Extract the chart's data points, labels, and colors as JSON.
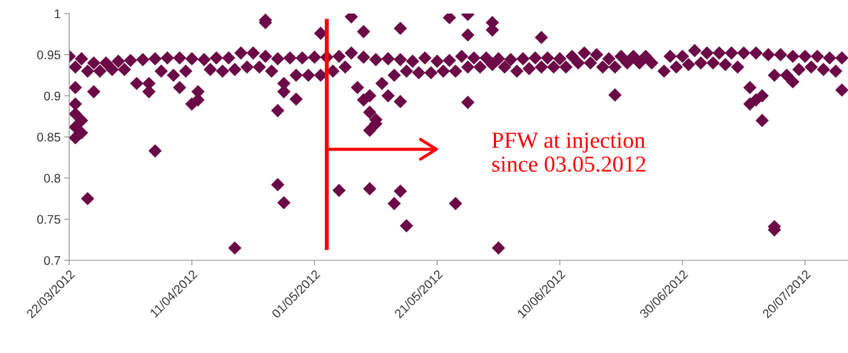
{
  "chart_data": {
    "type": "scatter",
    "color": "#6b0a47",
    "marker": "diamond",
    "grid": false,
    "legend": false,
    "x": [
      "2012-03-22",
      "2012-03-23",
      "2012-03-24",
      "2012-03-25",
      "2012-03-26",
      "2012-03-27",
      "2012-03-28",
      "2012-03-29",
      "2012-03-30",
      "2012-03-31",
      "2012-04-01",
      "2012-04-02",
      "2012-04-03",
      "2012-04-04",
      "2012-04-05",
      "2012-04-06",
      "2012-04-07",
      "2012-04-08",
      "2012-04-09",
      "2012-04-10",
      "2012-04-11",
      "2012-04-12",
      "2012-04-13",
      "2012-04-14",
      "2012-04-15",
      "2012-04-16",
      "2012-04-17",
      "2012-04-18",
      "2012-04-19",
      "2012-04-20",
      "2012-04-21",
      "2012-04-22",
      "2012-04-23",
      "2012-04-24",
      "2012-04-25",
      "2012-04-26",
      "2012-04-27",
      "2012-04-28",
      "2012-04-29",
      "2012-04-30",
      "2012-05-01",
      "2012-05-02",
      "2012-05-03",
      "2012-05-04",
      "2012-05-05",
      "2012-05-06",
      "2012-05-07",
      "2012-05-08",
      "2012-05-09",
      "2012-05-10",
      "2012-05-11",
      "2012-05-12",
      "2012-05-13",
      "2012-05-14",
      "2012-05-15",
      "2012-05-16",
      "2012-05-17",
      "2012-05-18",
      "2012-05-19",
      "2012-05-20",
      "2012-05-21",
      "2012-05-22",
      "2012-05-23",
      "2012-05-24",
      "2012-05-25",
      "2012-05-26",
      "2012-05-27",
      "2012-05-28",
      "2012-05-29",
      "2012-05-30",
      "2012-05-31",
      "2012-06-01",
      "2012-06-02",
      "2012-06-03",
      "2012-06-04",
      "2012-06-05",
      "2012-06-06",
      "2012-06-07",
      "2012-06-08",
      "2012-06-09",
      "2012-06-10",
      "2012-06-11",
      "2012-06-12",
      "2012-06-13",
      "2012-06-14",
      "2012-06-15",
      "2012-06-16",
      "2012-06-17",
      "2012-06-18",
      "2012-06-19",
      "2012-06-20",
      "2012-06-21",
      "2012-06-22",
      "2012-06-23",
      "2012-06-24",
      "2012-06-25",
      "2012-06-27",
      "2012-06-28",
      "2012-06-29",
      "2012-06-30",
      "2012-07-01",
      "2012-07-02",
      "2012-07-03",
      "2012-07-04",
      "2012-07-05",
      "2012-07-06",
      "2012-07-07",
      "2012-07-08",
      "2012-07-09",
      "2012-07-10",
      "2012-07-11",
      "2012-07-12",
      "2012-07-13",
      "2012-07-14",
      "2012-07-15",
      "2012-07-16",
      "2012-07-17",
      "2012-07-18",
      "2012-07-19",
      "2012-07-20",
      "2012-07-21",
      "2012-07-22",
      "2012-07-23",
      "2012-07-24",
      "2012-07-25",
      "2012-07-26",
      "2012-03-23",
      "2012-03-23",
      "2012-03-23",
      "2012-03-24",
      "2012-03-23",
      "2012-03-24",
      "2012-03-23",
      "2012-03-26",
      "2012-04-04",
      "2012-04-11",
      "2012-04-12",
      "2012-05-09",
      "2012-05-13",
      "2012-07-12",
      "2012-07-11",
      "2012-04-26",
      "2012-04-09",
      "2012-04-23",
      "2012-04-23",
      "2012-05-02",
      "2012-04-25",
      "2012-04-28",
      "2012-04-05",
      "2012-03-25",
      "2012-04-25",
      "2012-04-26",
      "2012-04-18",
      "2012-05-07",
      "2012-05-09",
      "2012-05-15",
      "2012-05-23",
      "2012-05-26",
      "2012-05-30",
      "2012-05-30",
      "2012-05-26",
      "2012-06-07",
      "2012-05-15",
      "2012-05-26",
      "2012-05-10",
      "2012-05-11",
      "2012-05-10",
      "2012-05-11",
      "2012-05-05",
      "2012-05-10",
      "2012-05-15",
      "2012-05-14",
      "2012-05-16",
      "2012-05-24",
      "2012-05-31",
      "2012-06-19",
      "2012-07-13",
      "2012-07-15",
      "2012-07-15",
      "2012-07-18",
      "2012-07-26"
    ],
    "values": [
      0.948,
      0.935,
      0.945,
      0.93,
      0.94,
      0.93,
      0.94,
      0.932,
      0.942,
      0.932,
      0.943,
      0.915,
      0.944,
      0.915,
      0.945,
      0.93,
      0.946,
      0.925,
      0.946,
      0.93,
      0.945,
      0.905,
      0.944,
      0.932,
      0.946,
      0.93,
      0.946,
      0.932,
      0.952,
      0.935,
      0.952,
      0.935,
      0.948,
      0.93,
      0.945,
      0.915,
      0.946,
      0.925,
      0.946,
      0.925,
      0.947,
      0.925,
      0.947,
      0.93,
      0.948,
      0.935,
      0.952,
      0.91,
      0.947,
      0.9,
      0.944,
      0.915,
      0.945,
      0.925,
      0.944,
      0.93,
      0.942,
      0.928,
      0.946,
      0.928,
      0.942,
      0.93,
      0.943,
      0.93,
      0.948,
      0.935,
      0.946,
      0.935,
      0.946,
      0.938,
      0.945,
      0.935,
      0.944,
      0.93,
      0.945,
      0.933,
      0.946,
      0.935,
      0.946,
      0.935,
      0.945,
      0.935,
      0.948,
      0.94,
      0.952,
      0.94,
      0.95,
      0.935,
      0.945,
      0.935,
      0.948,
      0.94,
      0.948,
      0.94,
      0.948,
      0.94,
      0.93,
      0.948,
      0.935,
      0.948,
      0.938,
      0.955,
      0.94,
      0.952,
      0.94,
      0.952,
      0.938,
      0.952,
      0.935,
      0.952,
      0.91,
      0.952,
      0.9,
      0.95,
      0.925,
      0.95,
      0.925,
      0.948,
      0.932,
      0.948,
      0.935,
      0.948,
      0.932,
      0.946,
      0.93,
      0.946,
      0.91,
      0.89,
      0.878,
      0.87,
      0.862,
      0.855,
      0.849,
      0.905,
      0.905,
      0.89,
      0.895,
      0.895,
      0.9,
      0.895,
      0.89,
      0.905,
      0.91,
      0.992,
      0.989,
      0.976,
      0.882,
      0.896,
      0.833,
      0.775,
      0.792,
      0.77,
      0.715,
      0.996,
      0.978,
      0.982,
      0.995,
      0.999,
      0.989,
      0.98,
      0.974,
      0.971,
      0.893,
      0.892,
      0.88,
      0.871,
      0.858,
      0.866,
      0.785,
      0.787,
      0.784,
      0.769,
      0.742,
      0.769,
      0.715,
      0.901,
      0.87,
      0.737,
      0.741,
      0.917,
      0.907
    ],
    "xlim": [
      "2012-03-22",
      "2012-07-27"
    ],
    "xticks": [
      {
        "value": "2012-03-22",
        "label": "22/03/2012"
      },
      {
        "value": "2012-04-11",
        "label": "11/04/2012"
      },
      {
        "value": "2012-05-01",
        "label": "01/05/2012"
      },
      {
        "value": "2012-05-21",
        "label": "21/05/2012"
      },
      {
        "value": "2012-06-10",
        "label": "10/06/2012"
      },
      {
        "value": "2012-06-30",
        "label": "30/06/2012"
      },
      {
        "value": "2012-07-20",
        "label": "20/07/2012"
      }
    ],
    "ylim": [
      0.7,
      1
    ],
    "yticks": [
      0.7,
      0.75,
      0.8,
      0.85,
      0.9,
      0.95,
      1
    ],
    "ref_lines": [
      {
        "axis": "x",
        "value": "2012-05-03",
        "color": "#ff0000"
      }
    ],
    "annotations": [
      "PFW at injection\nsince 03.05.2012"
    ]
  }
}
